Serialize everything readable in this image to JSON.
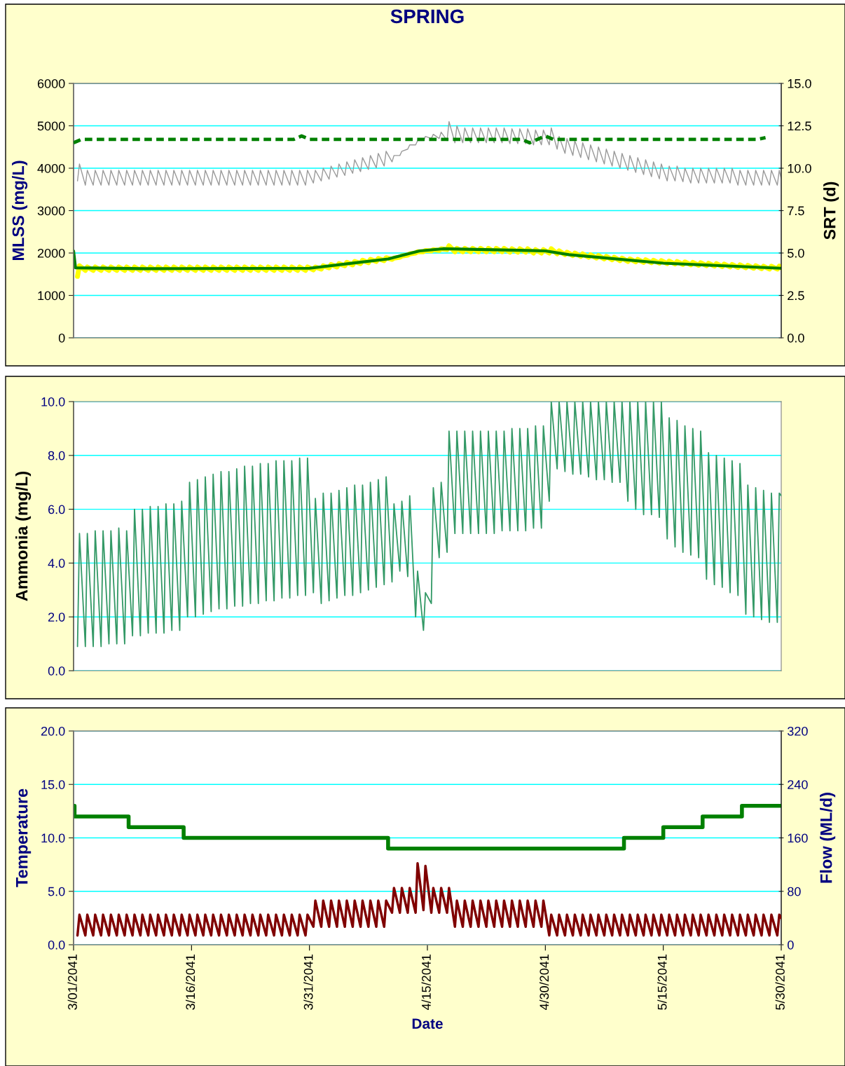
{
  "chart_data": [
    {
      "type": "line",
      "title": "SPRING",
      "ylabel": "MLSS (mg/L)",
      "y2label": "SRT (d)",
      "x": [
        "2041-03-01T12:00",
        "2041-03-01T18:00",
        "2041-03-02T12:00",
        "2041-03-02T18:00",
        "2041-03-03T12:00",
        "2041-03-03T18:00",
        "2041-03-04T12:00",
        "2041-03-04T18:00",
        "2041-03-05T12:00",
        "2041-03-05T18:00",
        "2041-03-06T12:00",
        "2041-03-06T18:00",
        "2041-03-07T12:00",
        "2041-03-07T18:00",
        "2041-03-08T12:00",
        "2041-03-08T18:00",
        "2041-03-09T12:00",
        "2041-03-09T18:00",
        "2041-03-10T12:00",
        "2041-03-10T18:00",
        "2041-03-11T12:00",
        "2041-03-11T18:00",
        "2041-03-12T12:00",
        "2041-03-12T18:00",
        "2041-03-13T12:00",
        "2041-03-13T18:00",
        "2041-03-14T12:00",
        "2041-03-14T18:00",
        "2041-03-15T12:00",
        "2041-03-15T18:00",
        "2041-03-16T12:00",
        "2041-03-16T18:00",
        "2041-03-17T12:00",
        "2041-03-17T18:00",
        "2041-03-18T12:00",
        "2041-03-18T18:00",
        "2041-03-19T12:00",
        "2041-03-19T18:00",
        "2041-03-20T12:00",
        "2041-03-20T18:00",
        "2041-03-21T12:00",
        "2041-03-21T18:00",
        "2041-03-22T12:00",
        "2041-03-22T18:00",
        "2041-03-23T12:00",
        "2041-03-23T18:00",
        "2041-03-24T12:00",
        "2041-03-24T18:00",
        "2041-03-25T12:00",
        "2041-03-25T18:00",
        "2041-03-26T12:00",
        "2041-03-26T18:00",
        "2041-03-27T12:00",
        "2041-03-27T18:00",
        "2041-03-28T12:00",
        "2041-03-28T18:00",
        "2041-03-29T12:00",
        "2041-03-29T18:00",
        "2041-03-30T12:00",
        "2041-03-30T18:00",
        "2041-03-31T12:00",
        "2041-03-31T18:00",
        "2041-04-01T12:00",
        "2041-04-01T18:00",
        "2041-04-02T12:00",
        "2041-04-02T18:00",
        "2041-04-03T12:00",
        "2041-04-03T18:00",
        "2041-04-04T12:00",
        "2041-04-04T18:00",
        "2041-04-05T12:00",
        "2041-04-05T18:00",
        "2041-04-06T12:00",
        "2041-04-06T18:00",
        "2041-04-07T12:00",
        "2041-04-07T18:00",
        "2041-04-08T12:00",
        "2041-04-08T18:00",
        "2041-04-09T12:00",
        "2041-04-09T18:00",
        "2041-04-10T12:00",
        "2041-04-10T18:00",
        "2041-04-11T12:00",
        "2041-04-11T18:00",
        "2041-04-12T12:00",
        "2041-04-12T18:00",
        "2041-04-13T12:00",
        "2041-04-13T18:00",
        "2041-04-14T12:00",
        "2041-04-14T18:00",
        "2041-04-15T12:00",
        "2041-04-15T18:00",
        "2041-04-16T12:00",
        "2041-04-16T18:00",
        "2041-04-17T12:00",
        "2041-04-17T18:00",
        "2041-04-18T12:00",
        "2041-04-18T18:00",
        "2041-04-19T12:00",
        "2041-04-19T18:00",
        "2041-04-20T12:00",
        "2041-04-20T18:00",
        "2041-04-21T12:00",
        "2041-04-21T18:00",
        "2041-04-22T12:00",
        "2041-04-22T18:00",
        "2041-04-23T12:00",
        "2041-04-23T18:00",
        "2041-04-24T12:00",
        "2041-04-24T18:00",
        "2041-04-25T12:00",
        "2041-04-25T18:00",
        "2041-04-26T12:00",
        "2041-04-26T18:00",
        "2041-04-27T12:00",
        "2041-04-27T18:00",
        "2041-04-28T12:00",
        "2041-04-28T18:00",
        "2041-04-29T12:00",
        "2041-04-29T18:00",
        "2041-04-30T12:00",
        "2041-04-30T18:00",
        "2041-05-01T12:00",
        "2041-05-01T18:00",
        "2041-05-02T12:00",
        "2041-05-02T18:00",
        "2041-05-03T12:00",
        "2041-05-03T18:00",
        "2041-05-04T12:00",
        "2041-05-04T18:00",
        "2041-05-05T12:00",
        "2041-05-05T18:00",
        "2041-05-06T12:00",
        "2041-05-06T18:00",
        "2041-05-07T12:00",
        "2041-05-07T18:00",
        "2041-05-08T12:00",
        "2041-05-08T18:00",
        "2041-05-09T12:00",
        "2041-05-09T18:00",
        "2041-05-10T12:00",
        "2041-05-10T18:00",
        "2041-05-11T12:00",
        "2041-05-11T18:00",
        "2041-05-12T12:00",
        "2041-05-12T18:00",
        "2041-05-13T12:00",
        "2041-05-13T18:00",
        "2041-05-14T12:00",
        "2041-05-14T18:00",
        "2041-05-15T12:00",
        "2041-05-15T18:00",
        "2041-05-16T12:00",
        "2041-05-16T18:00",
        "2041-05-17T12:00",
        "2041-05-17T18:00",
        "2041-05-18T12:00",
        "2041-05-18T18:00",
        "2041-05-19T12:00",
        "2041-05-19T18:00",
        "2041-05-20T12:00",
        "2041-05-20T18:00",
        "2041-05-21T12:00",
        "2041-05-21T18:00",
        "2041-05-22T12:00",
        "2041-05-22T18:00",
        "2041-05-23T12:00",
        "2041-05-23T18:00",
        "2041-05-24T12:00",
        "2041-05-24T18:00",
        "2041-05-25T12:00",
        "2041-05-25T18:00",
        "2041-05-26T12:00",
        "2041-05-26T18:00",
        "2041-05-27T12:00",
        "2041-05-27T18:00",
        "2041-05-28T12:00",
        "2041-05-28T18:00",
        "2041-05-29T12:00",
        "2041-05-29T18:00",
        "2041-05-30T00:00"
      ],
      "xlim": [
        "2041-03-01",
        "2041-05-30"
      ],
      "ylim": [
        0,
        6000
      ],
      "yticks": [
        0,
        1000,
        2000,
        3000,
        4000,
        5000,
        6000
      ],
      "y2lim": [
        0,
        15
      ],
      "y2ticks": [
        {
          "value": 0,
          "label": "0.0"
        },
        {
          "value": 2.5,
          "label": "2.5"
        },
        {
          "value": 5,
          "label": "5.0"
        },
        {
          "value": 7.5,
          "label": "7.5"
        },
        {
          "value": 10,
          "label": "10.0"
        },
        {
          "value": 12.5,
          "label": "12.5"
        },
        {
          "value": 15,
          "label": "15.0"
        }
      ],
      "grid": "y",
      "tick_labels": "y",
      "series": [
        {
          "color": "#999999",
          "values": [
            3700,
            4100,
            3600,
            3950,
            3600,
            3950,
            3600,
            3950,
            3600,
            3950,
            3600,
            3950,
            3600,
            3950,
            3600,
            3950,
            3600,
            3950,
            3600,
            3950,
            3600,
            3950,
            3600,
            3950,
            3600,
            3950,
            3600,
            3950,
            3600,
            3950,
            3600,
            3950,
            3600,
            3950,
            3600,
            3950,
            3600,
            3950,
            3600,
            3950,
            3600,
            3950,
            3600,
            3950,
            3600,
            3950,
            3600,
            3950,
            3600,
            3950,
            3600,
            3950,
            3600,
            3950,
            3600,
            3950,
            3600,
            3950,
            3600,
            3950,
            3650,
            3950,
            3700,
            4000,
            3740,
            4050,
            3790,
            4100,
            3830,
            4150,
            3880,
            4200,
            3920,
            4250,
            3970,
            4300,
            4010,
            4350,
            4050,
            4400,
            4150,
            4300,
            4300,
            4400,
            4450,
            4550,
            4550,
            4650,
            4650,
            4750,
            4700,
            4800,
            4700,
            4850,
            4650,
            5100,
            4600,
            5000,
            4600,
            4950,
            4600,
            4950,
            4600,
            4950,
            4600,
            4950,
            4600,
            4950,
            4600,
            4950,
            4580,
            4930,
            4580,
            4930,
            4580,
            4930,
            4550,
            4900,
            4550,
            4900,
            4550,
            4950,
            4450,
            4750,
            4350,
            4700,
            4300,
            4650,
            4250,
            4600,
            4200,
            4550,
            4150,
            4500,
            4100,
            4450,
            4050,
            4400,
            4000,
            4350,
            3950,
            4300,
            3900,
            4250,
            3850,
            4200,
            3800,
            4150,
            3750,
            4100,
            3700,
            4050,
            3700,
            4050,
            3680,
            4000,
            3650,
            4000,
            3650,
            4000,
            3650,
            4000,
            3650,
            4000,
            3650,
            4000,
            3650,
            4000,
            3600,
            3950,
            3600,
            3950,
            3600,
            3950,
            3600,
            3950,
            3600,
            3950,
            3600,
            3950,
            3750
          ]
        },
        {
          "color": "#ffff00",
          "values": [
            1450,
            1700,
            1590,
            1670,
            1590,
            1670,
            1590,
            1670,
            1590,
            1670,
            1590,
            1670,
            1590,
            1670,
            1590,
            1670,
            1590,
            1670,
            1590,
            1670,
            1590,
            1670,
            1590,
            1670,
            1590,
            1670,
            1590,
            1670,
            1590,
            1670,
            1590,
            1670,
            1590,
            1670,
            1590,
            1670,
            1590,
            1670,
            1590,
            1670,
            1590,
            1670,
            1590,
            1670,
            1590,
            1670,
            1590,
            1670,
            1590,
            1670,
            1590,
            1670,
            1590,
            1670,
            1590,
            1670,
            1590,
            1670,
            1590,
            1670,
            1600,
            1670,
            1620,
            1700,
            1650,
            1730,
            1670,
            1750,
            1700,
            1780,
            1720,
            1800,
            1750,
            1830,
            1770,
            1850,
            1800,
            1870,
            1820,
            1890,
            1850,
            1880,
            1900,
            1930,
            1950,
            1980,
            2000,
            2030,
            2030,
            2060,
            2050,
            2080,
            2060,
            2100,
            2080,
            2170,
            2030,
            2110,
            2030,
            2110,
            2030,
            2110,
            2030,
            2110,
            2030,
            2110,
            2030,
            2110,
            2030,
            2110,
            2020,
            2100,
            2020,
            2100,
            2020,
            2100,
            2000,
            2080,
            2000,
            2080,
            2000,
            2100,
            1980,
            2050,
            1960,
            2020,
            1940,
            2000,
            1920,
            1980,
            1900,
            1960,
            1880,
            1940,
            1860,
            1920,
            1840,
            1900,
            1820,
            1880,
            1800,
            1860,
            1790,
            1850,
            1780,
            1840,
            1770,
            1830,
            1760,
            1820,
            1750,
            1810,
            1740,
            1800,
            1730,
            1790,
            1720,
            1780,
            1710,
            1770,
            1700,
            1760,
            1690,
            1750,
            1680,
            1740,
            1670,
            1730,
            1660,
            1720,
            1650,
            1710,
            1640,
            1700,
            1630,
            1690,
            1620,
            1690,
            1620,
            1690,
            1650
          ]
        },
        {
          "color": "#008000",
          "x": [
            "2041-03-01T00:00",
            "2041-03-01T06:00",
            "2041-03-10",
            "2041-03-31",
            "2041-04-10",
            "2041-04-14",
            "2041-04-17",
            "2041-04-30",
            "2041-05-03",
            "2041-05-15",
            "2041-05-30"
          ],
          "values": [
            2050,
            1650,
            1630,
            1640,
            1860,
            2050,
            2100,
            2050,
            1960,
            1760,
            1640
          ]
        },
        {
          "color": "#008000",
          "axis": "y2",
          "line_style": "dashed",
          "x": [
            "2041-03-01",
            "2041-03-02",
            "2041-03-29",
            "2041-03-30",
            "2041-03-31",
            "2041-04-27",
            "2041-04-28",
            "2041-04-30",
            "2041-05-01",
            "2041-05-27",
            "2041-05-28"
          ],
          "values": [
            11.5,
            11.7,
            11.7,
            11.9,
            11.7,
            11.7,
            11.5,
            11.9,
            11.7,
            11.7,
            11.8
          ]
        }
      ]
    },
    {
      "type": "line",
      "ylabel": "Ammonia (mg/L)",
      "x": [
        "2041-03-01T12:00",
        "2041-03-01T18:00",
        "2041-03-02T12:00",
        "2041-03-02T18:00",
        "2041-03-03T12:00",
        "2041-03-03T18:00",
        "2041-03-04T12:00",
        "2041-03-04T18:00",
        "2041-03-05T12:00",
        "2041-03-05T18:00",
        "2041-03-06T12:00",
        "2041-03-06T18:00",
        "2041-03-07T12:00",
        "2041-03-07T18:00",
        "2041-03-08T12:00",
        "2041-03-08T18:00",
        "2041-03-09T12:00",
        "2041-03-09T18:00",
        "2041-03-10T12:00",
        "2041-03-10T18:00",
        "2041-03-11T12:00",
        "2041-03-11T18:00",
        "2041-03-12T12:00",
        "2041-03-12T18:00",
        "2041-03-13T12:00",
        "2041-03-13T18:00",
        "2041-03-14T12:00",
        "2041-03-14T18:00",
        "2041-03-15T12:00",
        "2041-03-15T18:00",
        "2041-03-16T12:00",
        "2041-03-16T18:00",
        "2041-03-17T12:00",
        "2041-03-17T18:00",
        "2041-03-18T12:00",
        "2041-03-18T18:00",
        "2041-03-19T12:00",
        "2041-03-19T18:00",
        "2041-03-20T12:00",
        "2041-03-20T18:00",
        "2041-03-21T12:00",
        "2041-03-21T18:00",
        "2041-03-22T12:00",
        "2041-03-22T18:00",
        "2041-03-23T12:00",
        "2041-03-23T18:00",
        "2041-03-24T12:00",
        "2041-03-24T18:00",
        "2041-03-25T12:00",
        "2041-03-25T18:00",
        "2041-03-26T12:00",
        "2041-03-26T18:00",
        "2041-03-27T12:00",
        "2041-03-27T18:00",
        "2041-03-28T12:00",
        "2041-03-28T18:00",
        "2041-03-29T12:00",
        "2041-03-29T18:00",
        "2041-03-30T12:00",
        "2041-03-30T18:00",
        "2041-03-31T12:00",
        "2041-03-31T18:00",
        "2041-04-01T12:00",
        "2041-04-01T18:00",
        "2041-04-02T12:00",
        "2041-04-02T18:00",
        "2041-04-03T12:00",
        "2041-04-03T18:00",
        "2041-04-04T12:00",
        "2041-04-04T18:00",
        "2041-04-05T12:00",
        "2041-04-05T18:00",
        "2041-04-06T12:00",
        "2041-04-06T18:00",
        "2041-04-07T12:00",
        "2041-04-07T18:00",
        "2041-04-08T12:00",
        "2041-04-08T18:00",
        "2041-04-09T12:00",
        "2041-04-09T18:00",
        "2041-04-10T12:00",
        "2041-04-10T18:00",
        "2041-04-11T12:00",
        "2041-04-11T18:00",
        "2041-04-12T12:00",
        "2041-04-12T18:00",
        "2041-04-13T12:00",
        "2041-04-13T18:00",
        "2041-04-14T12:00",
        "2041-04-14T18:00",
        "2041-04-15T12:00",
        "2041-04-15T18:00",
        "2041-04-16T12:00",
        "2041-04-16T18:00",
        "2041-04-17T12:00",
        "2041-04-17T18:00",
        "2041-04-18T12:00",
        "2041-04-18T18:00",
        "2041-04-19T12:00",
        "2041-04-19T18:00",
        "2041-04-20T12:00",
        "2041-04-20T18:00",
        "2041-04-21T12:00",
        "2041-04-21T18:00",
        "2041-04-22T12:00",
        "2041-04-22T18:00",
        "2041-04-23T12:00",
        "2041-04-23T18:00",
        "2041-04-24T12:00",
        "2041-04-24T18:00",
        "2041-04-25T12:00",
        "2041-04-25T18:00",
        "2041-04-26T12:00",
        "2041-04-26T18:00",
        "2041-04-27T12:00",
        "2041-04-27T18:00",
        "2041-04-28T12:00",
        "2041-04-28T18:00",
        "2041-04-29T12:00",
        "2041-04-29T18:00",
        "2041-04-30T12:00",
        "2041-04-30T18:00",
        "2041-05-01T12:00",
        "2041-05-01T18:00",
        "2041-05-02T12:00",
        "2041-05-02T18:00",
        "2041-05-03T12:00",
        "2041-05-03T18:00",
        "2041-05-04T12:00",
        "2041-05-04T18:00",
        "2041-05-05T12:00",
        "2041-05-05T18:00",
        "2041-05-06T12:00",
        "2041-05-06T18:00",
        "2041-05-07T12:00",
        "2041-05-07T18:00",
        "2041-05-08T12:00",
        "2041-05-08T18:00",
        "2041-05-09T12:00",
        "2041-05-09T18:00",
        "2041-05-10T12:00",
        "2041-05-10T18:00",
        "2041-05-11T12:00",
        "2041-05-11T18:00",
        "2041-05-12T12:00",
        "2041-05-12T18:00",
        "2041-05-13T12:00",
        "2041-05-13T18:00",
        "2041-05-14T12:00",
        "2041-05-14T18:00",
        "2041-05-15T12:00",
        "2041-05-15T18:00",
        "2041-05-16T12:00",
        "2041-05-16T18:00",
        "2041-05-17T12:00",
        "2041-05-17T18:00",
        "2041-05-18T12:00",
        "2041-05-18T18:00",
        "2041-05-19T12:00",
        "2041-05-19T18:00",
        "2041-05-20T12:00",
        "2041-05-20T18:00",
        "2041-05-21T12:00",
        "2041-05-21T18:00",
        "2041-05-22T12:00",
        "2041-05-22T18:00",
        "2041-05-23T12:00",
        "2041-05-23T18:00",
        "2041-05-24T12:00",
        "2041-05-24T18:00",
        "2041-05-25T12:00",
        "2041-05-25T18:00",
        "2041-05-26T12:00",
        "2041-05-26T18:00",
        "2041-05-27T12:00",
        "2041-05-27T18:00",
        "2041-05-28T12:00",
        "2041-05-28T18:00",
        "2041-05-29T12:00",
        "2041-05-29T18:00",
        "2041-05-30T00:00"
      ],
      "xlim": [
        "2041-03-01",
        "2041-05-30"
      ],
      "ylim": [
        0,
        10
      ],
      "yticks": [
        {
          "value": 0,
          "label": "0.0"
        },
        {
          "value": 2,
          "label": "2.0"
        },
        {
          "value": 4,
          "label": "4.0"
        },
        {
          "value": 6,
          "label": "6.0"
        },
        {
          "value": 8,
          "label": "8.0"
        },
        {
          "value": 10,
          "label": "10.0"
        }
      ],
      "grid": "y",
      "tick_labels": "y",
      "series": [
        {
          "color": "#339966",
          "values": [
            0.9,
            5.1,
            0.9,
            5.1,
            0.9,
            5.2,
            0.9,
            5.2,
            1.0,
            5.2,
            1.0,
            5.3,
            1.0,
            5.2,
            1.3,
            6.0,
            1.3,
            6.0,
            1.4,
            6.1,
            1.4,
            6.1,
            1.4,
            6.2,
            1.5,
            6.2,
            1.5,
            6.3,
            2.0,
            7.0,
            2.0,
            7.1,
            2.1,
            7.2,
            2.2,
            7.3,
            2.3,
            7.4,
            2.3,
            7.4,
            2.4,
            7.5,
            2.4,
            7.6,
            2.5,
            7.6,
            2.5,
            7.7,
            2.6,
            7.7,
            2.6,
            7.8,
            2.7,
            7.8,
            2.7,
            7.8,
            2.8,
            7.9,
            2.8,
            7.9,
            2.9,
            6.4,
            2.5,
            6.6,
            2.6,
            6.6,
            2.7,
            6.7,
            2.8,
            6.8,
            2.8,
            6.9,
            2.9,
            6.9,
            3.0,
            7.0,
            3.1,
            7.1,
            3.2,
            7.2,
            3.3,
            6.2,
            3.7,
            6.3,
            3.5,
            6.5,
            2.0,
            3.7,
            1.5,
            2.9,
            2.5,
            6.8,
            4.2,
            7.0,
            4.4,
            8.9,
            5.1,
            8.9,
            5.1,
            8.9,
            5.1,
            8.9,
            5.1,
            8.9,
            5.1,
            8.9,
            5.1,
            8.9,
            5.2,
            8.9,
            5.2,
            9.0,
            5.2,
            9.0,
            5.2,
            9.0,
            5.3,
            9.1,
            5.3,
            9.1,
            6.3,
            10.0,
            7.5,
            10.0,
            7.4,
            10.0,
            7.3,
            10.0,
            7.3,
            10.0,
            7.2,
            10.0,
            7.1,
            10.0,
            7.1,
            10.0,
            7.0,
            10.0,
            7.0,
            10.0,
            6.3,
            10.0,
            6.0,
            10.0,
            5.8,
            10.0,
            5.8,
            10.0,
            5.7,
            10.0,
            4.9,
            9.4,
            4.6,
            9.3,
            4.4,
            9.1,
            4.3,
            9.0,
            4.2,
            8.9,
            3.4,
            8.1,
            3.2,
            8.0,
            3.1,
            7.9,
            2.9,
            7.8,
            2.8,
            7.7,
            2.1,
            6.9,
            2.0,
            6.8,
            1.9,
            6.7,
            1.8,
            6.6,
            1.8,
            6.6,
            6.5
          ]
        }
      ]
    },
    {
      "type": "line",
      "xlabel": "Date",
      "ylabel": "Temperature",
      "y2label": "Flow (ML/d)",
      "x": [
        "2041-03-01T12:00",
        "2041-03-01T18:00",
        "2041-03-02T12:00",
        "2041-03-02T18:00",
        "2041-03-03T12:00",
        "2041-03-03T18:00",
        "2041-03-04T12:00",
        "2041-03-04T18:00",
        "2041-03-05T12:00",
        "2041-03-05T18:00",
        "2041-03-06T12:00",
        "2041-03-06T18:00",
        "2041-03-07T12:00",
        "2041-03-07T18:00",
        "2041-03-08T12:00",
        "2041-03-08T18:00",
        "2041-03-09T12:00",
        "2041-03-09T18:00",
        "2041-03-10T12:00",
        "2041-03-10T18:00",
        "2041-03-11T12:00",
        "2041-03-11T18:00",
        "2041-03-12T12:00",
        "2041-03-12T18:00",
        "2041-03-13T12:00",
        "2041-03-13T18:00",
        "2041-03-14T12:00",
        "2041-03-14T18:00",
        "2041-03-15T12:00",
        "2041-03-15T18:00",
        "2041-03-16T12:00",
        "2041-03-16T18:00",
        "2041-03-17T12:00",
        "2041-03-17T18:00",
        "2041-03-18T12:00",
        "2041-03-18T18:00",
        "2041-03-19T12:00",
        "2041-03-19T18:00",
        "2041-03-20T12:00",
        "2041-03-20T18:00",
        "2041-03-21T12:00",
        "2041-03-21T18:00",
        "2041-03-22T12:00",
        "2041-03-22T18:00",
        "2041-03-23T12:00",
        "2041-03-23T18:00",
        "2041-03-24T12:00",
        "2041-03-24T18:00",
        "2041-03-25T12:00",
        "2041-03-25T18:00",
        "2041-03-26T12:00",
        "2041-03-26T18:00",
        "2041-03-27T12:00",
        "2041-03-27T18:00",
        "2041-03-28T12:00",
        "2041-03-28T18:00",
        "2041-03-29T12:00",
        "2041-03-29T18:00",
        "2041-03-30T12:00",
        "2041-03-30T18:00",
        "2041-03-31T12:00",
        "2041-03-31T18:00",
        "2041-04-01T12:00",
        "2041-04-01T18:00",
        "2041-04-02T12:00",
        "2041-04-02T18:00",
        "2041-04-03T12:00",
        "2041-04-03T18:00",
        "2041-04-04T12:00",
        "2041-04-04T18:00",
        "2041-04-05T12:00",
        "2041-04-05T18:00",
        "2041-04-06T12:00",
        "2041-04-06T18:00",
        "2041-04-07T12:00",
        "2041-04-07T18:00",
        "2041-04-08T12:00",
        "2041-04-08T18:00",
        "2041-04-09T12:00",
        "2041-04-09T18:00",
        "2041-04-10T12:00",
        "2041-04-10T18:00",
        "2041-04-11T12:00",
        "2041-04-11T18:00",
        "2041-04-12T12:00",
        "2041-04-12T18:00",
        "2041-04-13T12:00",
        "2041-04-13T18:00",
        "2041-04-14T12:00",
        "2041-04-14T18:00",
        "2041-04-15T12:00",
        "2041-04-15T18:00",
        "2041-04-16T12:00",
        "2041-04-16T18:00",
        "2041-04-17T12:00",
        "2041-04-17T18:00",
        "2041-04-18T12:00",
        "2041-04-18T18:00",
        "2041-04-19T12:00",
        "2041-04-19T18:00",
        "2041-04-20T12:00",
        "2041-04-20T18:00",
        "2041-04-21T12:00",
        "2041-04-21T18:00",
        "2041-04-22T12:00",
        "2041-04-22T18:00",
        "2041-04-23T12:00",
        "2041-04-23T18:00",
        "2041-04-24T12:00",
        "2041-04-24T18:00",
        "2041-04-25T12:00",
        "2041-04-25T18:00",
        "2041-04-26T12:00",
        "2041-04-26T18:00",
        "2041-04-27T12:00",
        "2041-04-27T18:00",
        "2041-04-28T12:00",
        "2041-04-28T18:00",
        "2041-04-29T12:00",
        "2041-04-29T18:00",
        "2041-04-30T12:00",
        "2041-04-30T18:00",
        "2041-05-01T12:00",
        "2041-05-01T18:00",
        "2041-05-02T12:00",
        "2041-05-02T18:00",
        "2041-05-03T12:00",
        "2041-05-03T18:00",
        "2041-05-04T12:00",
        "2041-05-04T18:00",
        "2041-05-05T12:00",
        "2041-05-05T18:00",
        "2041-05-06T12:00",
        "2041-05-06T18:00",
        "2041-05-07T12:00",
        "2041-05-07T18:00",
        "2041-05-08T12:00",
        "2041-05-08T18:00",
        "2041-05-09T12:00",
        "2041-05-09T18:00",
        "2041-05-10T12:00",
        "2041-05-10T18:00",
        "2041-05-11T12:00",
        "2041-05-11T18:00",
        "2041-05-12T12:00",
        "2041-05-12T18:00",
        "2041-05-13T12:00",
        "2041-05-13T18:00",
        "2041-05-14T12:00",
        "2041-05-14T18:00",
        "2041-05-15T12:00",
        "2041-05-15T18:00",
        "2041-05-16T12:00",
        "2041-05-16T18:00",
        "2041-05-17T12:00",
        "2041-05-17T18:00",
        "2041-05-18T12:00",
        "2041-05-18T18:00",
        "2041-05-19T12:00",
        "2041-05-19T18:00",
        "2041-05-20T12:00",
        "2041-05-20T18:00",
        "2041-05-21T12:00",
        "2041-05-21T18:00",
        "2041-05-22T12:00",
        "2041-05-22T18:00",
        "2041-05-23T12:00",
        "2041-05-23T18:00",
        "2041-05-24T12:00",
        "2041-05-24T18:00",
        "2041-05-25T12:00",
        "2041-05-25T18:00",
        "2041-05-26T12:00",
        "2041-05-26T18:00",
        "2041-05-27T12:00",
        "2041-05-27T18:00",
        "2041-05-28T12:00",
        "2041-05-28T18:00",
        "2041-05-29T12:00",
        "2041-05-29T18:00",
        "2041-05-30T00:00"
      ],
      "xlim": [
        "2041-03-01",
        "2041-05-30"
      ],
      "xticks": [
        {
          "value": "2041-03-01",
          "label": "3/01/2041"
        },
        {
          "value": "2041-03-16",
          "label": "3/16/2041"
        },
        {
          "value": "2041-03-31",
          "label": "3/31/2041"
        },
        {
          "value": "2041-04-15",
          "label": "4/15/2041"
        },
        {
          "value": "2041-04-30",
          "label": "4/30/2041"
        },
        {
          "value": "2041-05-15",
          "label": "5/15/2041"
        },
        {
          "value": "2041-05-30",
          "label": "5/30/2041"
        }
      ],
      "ylim": [
        0,
        20
      ],
      "yticks": [
        {
          "value": 0,
          "label": "0.0"
        },
        {
          "value": 5,
          "label": "5.0"
        },
        {
          "value": 10,
          "label": "10.0"
        },
        {
          "value": 15,
          "label": "15.0"
        },
        {
          "value": 20,
          "label": "20.0"
        }
      ],
      "y2lim": [
        0,
        320
      ],
      "y2ticks": [
        0,
        80,
        160,
        240,
        320
      ],
      "grid": "y",
      "series": [
        {
          "type": "step",
          "color": "#008000",
          "x": [
            "2041-03-01T00:00",
            "2041-03-01T03:00",
            "2041-03-08",
            "2041-03-15",
            "2041-04-10",
            "2041-05-10",
            "2041-05-15",
            "2041-05-20",
            "2041-05-25",
            "2041-05-30"
          ],
          "values": [
            13,
            12,
            11,
            10,
            9,
            10,
            11,
            12,
            13,
            13
          ]
        },
        {
          "color": "#800000",
          "axis": "y2",
          "values": [
            14,
            45,
            14,
            45,
            14,
            45,
            14,
            45,
            14,
            45,
            14,
            45,
            14,
            45,
            14,
            45,
            14,
            45,
            14,
            45,
            14,
            45,
            14,
            45,
            14,
            45,
            14,
            45,
            14,
            45,
            14,
            45,
            14,
            45,
            14,
            45,
            14,
            45,
            14,
            45,
            14,
            45,
            14,
            45,
            14,
            45,
            14,
            45,
            14,
            45,
            14,
            45,
            14,
            45,
            14,
            45,
            14,
            45,
            14,
            45,
            27,
            66,
            27,
            66,
            27,
            66,
            27,
            66,
            27,
            66,
            27,
            66,
            27,
            66,
            27,
            66,
            27,
            66,
            27,
            66,
            48,
            85,
            48,
            85,
            48,
            85,
            48,
            122,
            52,
            118,
            48,
            85,
            48,
            85,
            48,
            85,
            27,
            66,
            27,
            66,
            27,
            66,
            27,
            66,
            27,
            66,
            27,
            66,
            27,
            66,
            27,
            66,
            27,
            66,
            27,
            66,
            27,
            66,
            27,
            66,
            14,
            45,
            14,
            45,
            14,
            45,
            14,
            45,
            14,
            45,
            14,
            45,
            14,
            45,
            14,
            45,
            14,
            45,
            14,
            45,
            14,
            45,
            14,
            45,
            14,
            45,
            14,
            45,
            14,
            45,
            14,
            45,
            14,
            45,
            14,
            45,
            14,
            45,
            14,
            45,
            14,
            45,
            14,
            45,
            14,
            45,
            14,
            45,
            14,
            45,
            14,
            45,
            14,
            45,
            14,
            45,
            14,
            45,
            14,
            45,
            40
          ]
        }
      ]
    }
  ]
}
